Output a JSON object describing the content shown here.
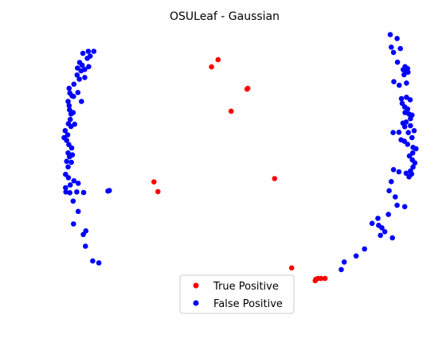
{
  "chart_data": {
    "type": "scatter",
    "title": "OSULeaf - Gaussian",
    "xlabel": "",
    "ylabel": "",
    "axes_visible": false,
    "grid": false,
    "xlim": [
      0,
      100
    ],
    "ylim": [
      0,
      100
    ],
    "legend_position": "bottom-center",
    "series": [
      {
        "name": "True Positive",
        "color": "#ff0000",
        "points": [
          [
            43.0,
            87.4
          ],
          [
            44.8,
            90.0
          ],
          [
            52.8,
            79.4
          ],
          [
            53.0,
            79.7
          ],
          [
            48.4,
            71.5
          ],
          [
            27.1,
            46.1
          ],
          [
            28.2,
            42.6
          ],
          [
            60.4,
            47.3
          ],
          [
            65.1,
            15.2
          ],
          [
            71.6,
            10.6
          ],
          [
            71.8,
            11.1
          ],
          [
            72.4,
            11.4
          ],
          [
            73.2,
            11.4
          ],
          [
            74.3,
            11.4
          ]
        ]
      },
      {
        "name": "False Positive",
        "color": "#0000ff",
        "points": [
          [
            9.0,
            93.0
          ],
          [
            9.5,
            91.3
          ],
          [
            10.5,
            93.0
          ],
          [
            8.7,
            90.5
          ],
          [
            7.5,
            92.3
          ],
          [
            6.6,
            89.0
          ],
          [
            6.0,
            87.0
          ],
          [
            7.3,
            88.0
          ],
          [
            8.0,
            86.5
          ],
          [
            9.1,
            87.5
          ],
          [
            7.0,
            86.0
          ],
          [
            5.9,
            84.5
          ],
          [
            6.5,
            83.0
          ],
          [
            8.0,
            83.6
          ],
          [
            5.0,
            81.2
          ],
          [
            3.7,
            79.7
          ],
          [
            3.9,
            78.0
          ],
          [
            4.5,
            77.0
          ],
          [
            3.4,
            75.0
          ],
          [
            4.9,
            76.8
          ],
          [
            6.1,
            78.2
          ],
          [
            7.1,
            75.0
          ],
          [
            3.7,
            73.5
          ],
          [
            3.8,
            72.0
          ],
          [
            4.2,
            70.5
          ],
          [
            4.8,
            71.0
          ],
          [
            4.0,
            68.5
          ],
          [
            3.5,
            67.0
          ],
          [
            4.2,
            66.0
          ],
          [
            5.2,
            66.8
          ],
          [
            2.6,
            64.5
          ],
          [
            2.3,
            62.0
          ],
          [
            3.3,
            63.0
          ],
          [
            3.0,
            61.0
          ],
          [
            3.6,
            59.5
          ],
          [
            4.4,
            58.3
          ],
          [
            3.4,
            56.5
          ],
          [
            3.8,
            55.1
          ],
          [
            4.6,
            55.8
          ],
          [
            3.0,
            53.5
          ],
          [
            4.3,
            53.1
          ],
          [
            3.4,
            51.5
          ],
          [
            2.7,
            48.8
          ],
          [
            3.5,
            47.6
          ],
          [
            5.0,
            46.5
          ],
          [
            6.2,
            45.6
          ],
          [
            4.0,
            45.0
          ],
          [
            2.7,
            44.0
          ],
          [
            2.8,
            42.5
          ],
          [
            3.9,
            42.2
          ],
          [
            5.8,
            42.5
          ],
          [
            7.7,
            42.3
          ],
          [
            4.8,
            39.2
          ],
          [
            6.2,
            35.5
          ],
          [
            4.9,
            31.0
          ],
          [
            8.3,
            28.5
          ],
          [
            7.6,
            27.2
          ],
          [
            8.2,
            23.0
          ],
          [
            10.2,
            17.7
          ],
          [
            11.9,
            17.0
          ],
          [
            14.4,
            42.8
          ],
          [
            14.8,
            43.0
          ],
          [
            92.3,
            99.0
          ],
          [
            94.2,
            97.6
          ],
          [
            92.6,
            94.5
          ],
          [
            95.1,
            94.0
          ],
          [
            93.2,
            92.6
          ],
          [
            94.3,
            89.1
          ],
          [
            95.9,
            86.4
          ],
          [
            96.4,
            87.5
          ],
          [
            97.1,
            86.8
          ],
          [
            96.7,
            86.0
          ],
          [
            96.1,
            84.6
          ],
          [
            97.2,
            85.5
          ],
          [
            94.8,
            80.8
          ],
          [
            93.3,
            82.1
          ],
          [
            96.8,
            81.6
          ],
          [
            95.4,
            76.0
          ],
          [
            96.8,
            76.5
          ],
          [
            97.8,
            75.6
          ],
          [
            95.6,
            74.3
          ],
          [
            96.3,
            73.0
          ],
          [
            97.1,
            72.3
          ],
          [
            96.4,
            71.0
          ],
          [
            97.5,
            70.5
          ],
          [
            98.3,
            70.1
          ],
          [
            97.9,
            68.8
          ],
          [
            96.7,
            67.6
          ],
          [
            95.8,
            67.2
          ],
          [
            96.3,
            65.9
          ],
          [
            97.9,
            66.3
          ],
          [
            98.9,
            64.5
          ],
          [
            97.3,
            63.8
          ],
          [
            98.3,
            62.0
          ],
          [
            94.7,
            63.9
          ],
          [
            93.1,
            63.8
          ],
          [
            95.3,
            61.2
          ],
          [
            96.2,
            60.7
          ],
          [
            97.1,
            59.6
          ],
          [
            98.6,
            58.5
          ],
          [
            99.4,
            58.0
          ],
          [
            98.5,
            56.5
          ],
          [
            97.6,
            55.4
          ],
          [
            98.4,
            54.0
          ],
          [
            99.1,
            52.9
          ],
          [
            98.6,
            51.4
          ],
          [
            97.9,
            50.0
          ],
          [
            98.2,
            48.9
          ],
          [
            97.5,
            47.9
          ],
          [
            96.7,
            49.2
          ],
          [
            94.7,
            49.7
          ],
          [
            93.2,
            50.5
          ],
          [
            92.6,
            46.2
          ],
          [
            92.0,
            42.9
          ],
          [
            93.7,
            40.7
          ],
          [
            96.3,
            37.2
          ],
          [
            94.2,
            37.7
          ],
          [
            91.8,
            34.4
          ],
          [
            88.9,
            33.0
          ],
          [
            87.3,
            31.2
          ],
          [
            89.1,
            30.5
          ],
          [
            90.0,
            29.6
          ],
          [
            90.8,
            28.2
          ],
          [
            89.6,
            26.9
          ],
          [
            92.9,
            26.0
          ],
          [
            85.2,
            22.0
          ],
          [
            82.9,
            19.5
          ],
          [
            79.6,
            17.3
          ],
          [
            78.8,
            14.6
          ]
        ]
      }
    ]
  }
}
